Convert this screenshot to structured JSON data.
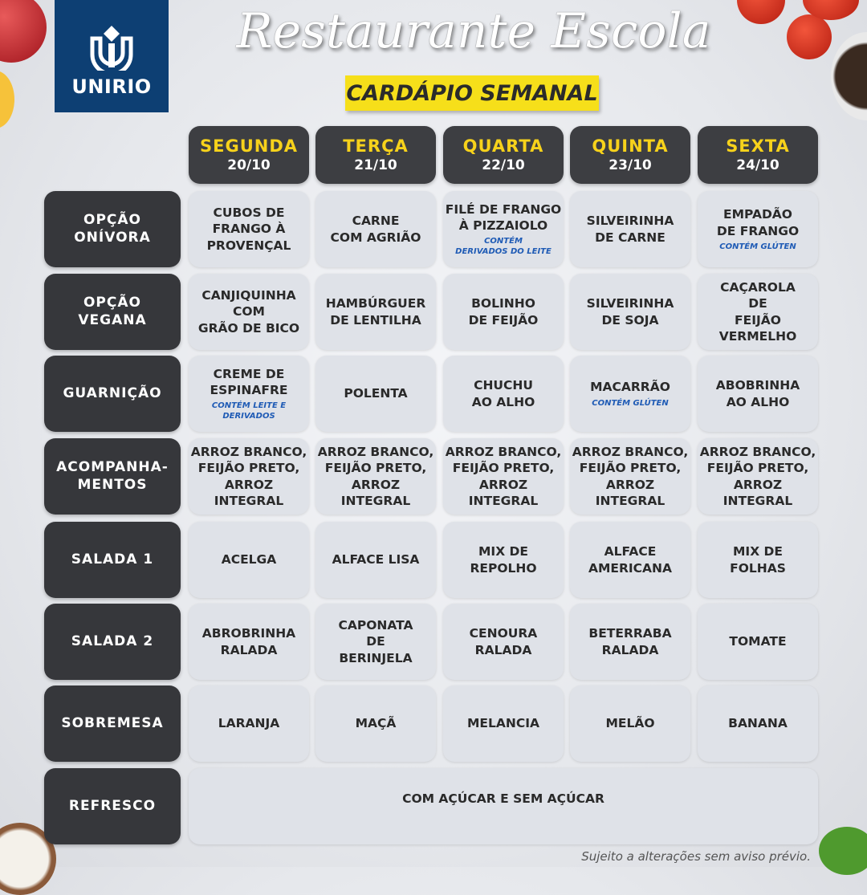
{
  "logo": {
    "text": "UNIRIO"
  },
  "header": {
    "title": "Restaurante Escola",
    "subtitle": "CARDÁPIO SEMANAL"
  },
  "days": [
    {
      "name": "SEGUNDA",
      "date": "20/10"
    },
    {
      "name": "TERÇA",
      "date": "21/10"
    },
    {
      "name": "QUARTA",
      "date": "22/10"
    },
    {
      "name": "QUINTA",
      "date": "23/10"
    },
    {
      "name": "SEXTA",
      "date": "24/10"
    }
  ],
  "rows": [
    {
      "label": "OPÇÃO\nONÍVORA",
      "cells": [
        {
          "text": "CUBOS DE\nFRANGO À\nPROVENÇAL"
        },
        {
          "text": "CARNE\nCOM AGRIÃO"
        },
        {
          "text": "FILÉ DE FRANGO\nÀ PIZZAIOLO",
          "note": "CONTÉM\nDERIVADOS DO LEITE"
        },
        {
          "text": "SILVEIRINHA\nDE CARNE"
        },
        {
          "text": "EMPADÃO\nDE FRANGO",
          "note": "CONTÉM GLÚTEN"
        }
      ]
    },
    {
      "label": "OPÇÃO\nVEGANA",
      "cells": [
        {
          "text": "CANJIQUINHA\nCOM\nGRÃO DE BICO"
        },
        {
          "text": "HAMBÚRGUER\nDE LENTILHA"
        },
        {
          "text": "BOLINHO\nDE FEIJÃO"
        },
        {
          "text": "SILVEIRINHA\nDE SOJA"
        },
        {
          "text": "CAÇAROLA\nDE\nFEIJÃO VERMELHO"
        }
      ]
    },
    {
      "label": "GUARNIÇÃO",
      "cells": [
        {
          "text": "CREME DE\nESPINAFRE",
          "note": "CONTÉM LEITE E\nDERIVADOS"
        },
        {
          "text": "POLENTA"
        },
        {
          "text": "CHUCHU\nAO ALHO"
        },
        {
          "text": "MACARRÃO",
          "note": "CONTÉM GLÚTEN"
        },
        {
          "text": "ABOBRINHA\nAO ALHO"
        }
      ]
    },
    {
      "label": "ACOMPANHA-\nMENTOS",
      "cells": [
        {
          "text": "ARROZ BRANCO,\nFEIJÃO PRETO,\nARROZ INTEGRAL"
        },
        {
          "text": "ARROZ BRANCO,\nFEIJÃO PRETO,\nARROZ INTEGRAL"
        },
        {
          "text": "ARROZ BRANCO,\nFEIJÃO PRETO,\nARROZ INTEGRAL"
        },
        {
          "text": "ARROZ BRANCO,\nFEIJÃO PRETO,\nARROZ INTEGRAL"
        },
        {
          "text": "ARROZ BRANCO,\nFEIJÃO PRETO,\nARROZ INTEGRAL"
        }
      ]
    },
    {
      "label": "SALADA 1",
      "cells": [
        {
          "text": "ACELGA"
        },
        {
          "text": "ALFACE LISA"
        },
        {
          "text": "MIX DE\nREPOLHO"
        },
        {
          "text": "ALFACE\nAMERICANA"
        },
        {
          "text": "MIX DE\nFOLHAS"
        }
      ]
    },
    {
      "label": "SALADA 2",
      "cells": [
        {
          "text": "ABROBRINHA\nRALADA"
        },
        {
          "text": "CAPONATA\nDE\nBERINJELA"
        },
        {
          "text": "CENOURA\nRALADA"
        },
        {
          "text": "BETERRABA\nRALADA"
        },
        {
          "text": "TOMATE"
        }
      ]
    },
    {
      "label": "SOBREMESA",
      "cells": [
        {
          "text": "LARANJA"
        },
        {
          "text": "MAÇÃ"
        },
        {
          "text": "MELANCIA"
        },
        {
          "text": "MELÃO"
        },
        {
          "text": "BANANA"
        }
      ]
    },
    {
      "label": "REFRESCO",
      "merged": {
        "text": "COM AÇÚCAR E SEM AÇÚCAR"
      }
    }
  ],
  "footer": {
    "note": "Sujeito a alterações sem aviso prévio."
  },
  "colors": {
    "header_bg": "#36373b",
    "day_name": "#f7d21b",
    "subtitle_bg": "#f6df1a",
    "cell_bg": "#dfe2e8",
    "note": "#1f5bb5",
    "logo_bg": "#0d3f73"
  }
}
